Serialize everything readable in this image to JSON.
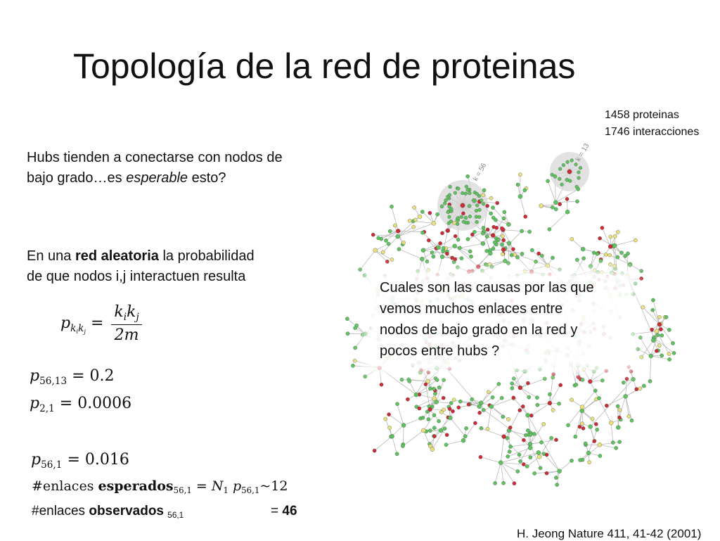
{
  "slide": {
    "title": "Topología de la red de proteinas",
    "stats": [
      "1458 proteinas",
      "1746 interacciones"
    ],
    "para1": {
      "line1": "Hubs tienden a conectarse con nodos de",
      "line2_prefix": "bajo grado…es ",
      "line2_italic": "esperable",
      "line2_suffix": " esto?"
    },
    "para2": {
      "line1_prefix": "En una ",
      "line1_bold": "red aleatoria",
      "line1_suffix": " la probabilidad",
      "line2": "de que nodos i,j interactuen resulta"
    },
    "formula": {
      "p": "p",
      "sub_k1": "k",
      "sub_i": "i",
      "sub_k2": "k",
      "sub_j": "j",
      "eq": "=",
      "num_k1": "k",
      "num_i": "i",
      "num_k2": "k",
      "num_j": "j",
      "den": "2m"
    },
    "values": [
      {
        "p": "p",
        "sub": "56,13",
        "rhs": "= 0.2"
      },
      {
        "p": "p",
        "sub": "2,1",
        "rhs": "= 0.0006"
      },
      {
        "p": "p",
        "sub": "56,1",
        "rhs": "= 0.016"
      }
    ],
    "expected": {
      "prefix": "#enlaces ",
      "bold": "esperados",
      "sub": "56,1",
      "eq": " = ",
      "N": "N",
      "N_sub": "1",
      "p": "p",
      "p_sub": "56,1",
      "tail": "~12"
    },
    "observed": {
      "prefix": "#enlaces ",
      "bold": "observados",
      "sub": "56,1",
      "eq": "= ",
      "value": "46"
    },
    "overlay_lines": [
      "Cuales son las causas por las que",
      "vemos muchos enlaces entre",
      "nodos de bajo grado en la red y",
      "pocos entre hubs ?"
    ],
    "hub_labels": [
      "k = 56",
      "k = 13"
    ],
    "citation": "H. Jeong Nature 411, 41-42 (2001)"
  },
  "colors": {
    "node_green": "#5cc45c",
    "node_red": "#cc2a35",
    "node_yellow": "#e9e27a",
    "edge": "#b8b8b8",
    "hub_highlight": "#d8d8d8"
  }
}
